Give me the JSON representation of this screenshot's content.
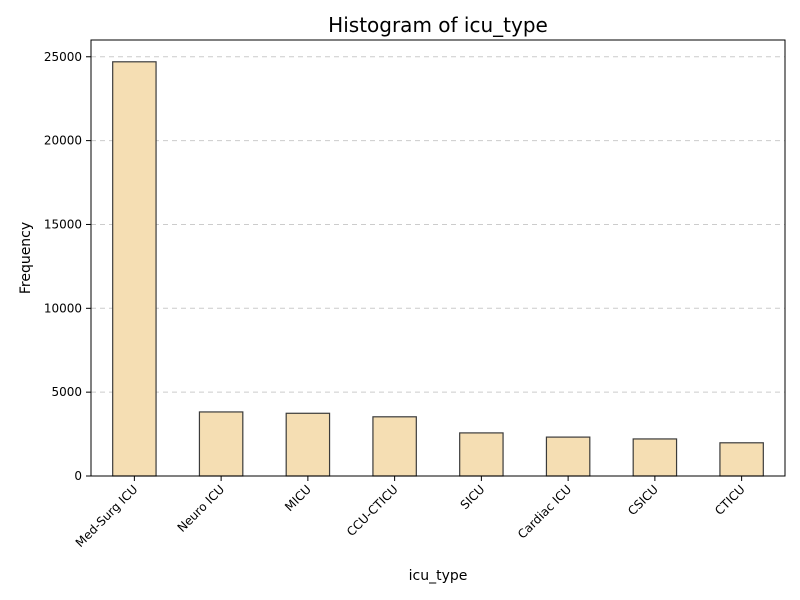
{
  "chart_data": {
    "type": "bar",
    "title": "Histogram of icu_type",
    "xlabel": "icu_type",
    "ylabel": "Frequency",
    "categories": [
      "Med-Surg ICU",
      "Neuro ICU",
      "MICU",
      "CCU-CTICU",
      "SICU",
      "Cardiac ICU",
      "CSICU",
      "CTICU"
    ],
    "values": [
      24700,
      3820,
      3740,
      3530,
      2570,
      2320,
      2210,
      1980
    ],
    "yticks": [
      0,
      5000,
      10000,
      15000,
      20000,
      25000
    ],
    "ylim": [
      0,
      26000
    ],
    "grid": "y-dashed",
    "bar_color": "#f5deb3",
    "bar_edge_color": "#3b3b3b",
    "legend": "none"
  }
}
